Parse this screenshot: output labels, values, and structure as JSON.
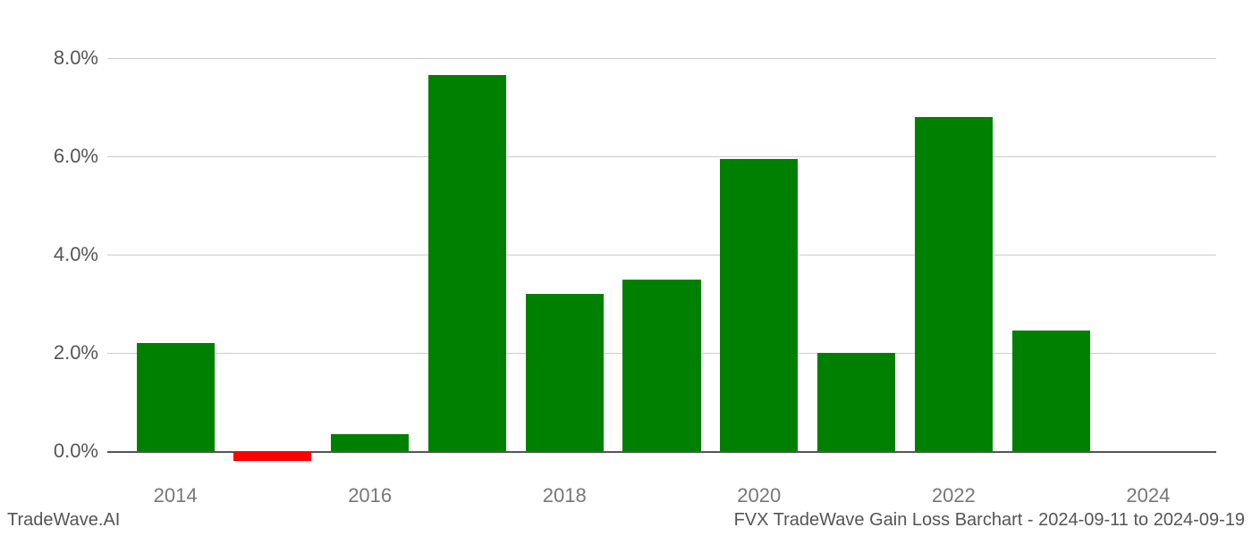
{
  "chart": {
    "type": "bar",
    "years": [
      2014,
      2015,
      2016,
      2017,
      2018,
      2019,
      2020,
      2021,
      2022,
      2023
    ],
    "values": [
      2.2,
      -0.2,
      0.35,
      7.65,
      3.2,
      3.5,
      5.95,
      2.0,
      6.8,
      2.45
    ],
    "bar_colors": [
      "#008000",
      "#ff0000",
      "#008000",
      "#008000",
      "#008000",
      "#008000",
      "#008000",
      "#008000",
      "#008000",
      "#008000"
    ],
    "xlim": [
      2013.3,
      2024.7
    ],
    "x_ticks": [
      2014,
      2016,
      2018,
      2020,
      2022,
      2024
    ],
    "x_tick_labels": [
      "2014",
      "2016",
      "2018",
      "2020",
      "2022",
      "2024"
    ],
    "ylim": [
      -0.45,
      8.45
    ],
    "y_ticks": [
      0,
      2,
      4,
      6,
      8
    ],
    "y_tick_labels": [
      "0.0%",
      "2.0%",
      "4.0%",
      "6.0%",
      "8.0%"
    ],
    "bar_width": 0.8,
    "grid_color": "#cccccc",
    "zero_line_color": "#555555",
    "background_color": "#ffffff",
    "tick_font_color_y": "#555555",
    "tick_font_color_x": "#777777",
    "tick_fontsize": 22,
    "footer_fontsize": 20,
    "footer_color": "#555555"
  },
  "footer_left": "TradeWave.AI",
  "footer_right": "FVX TradeWave Gain Loss Barchart - 2024-09-11 to 2024-09-19"
}
